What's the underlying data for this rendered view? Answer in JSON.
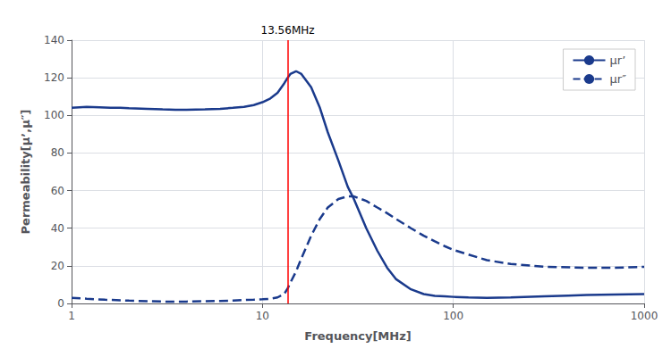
{
  "chart_data": {
    "type": "line",
    "title": "13.56MHz",
    "xlabel": "Frequency[MHz]",
    "ylabel": "Permeability[μ’,μ″]",
    "log": "x",
    "xlim": [
      1,
      1000
    ],
    "xticks": [
      1,
      10,
      100,
      1000
    ],
    "ylim": [
      0,
      140
    ],
    "yticks": [
      0,
      20,
      40,
      60,
      80,
      100,
      120,
      140
    ],
    "grid": true,
    "legend": "upper right",
    "vline": {
      "x": 13.56,
      "color": "#ff0000"
    },
    "series": [
      {
        "name": "μr’",
        "color": "#1a3a8c",
        "line_style": "solid",
        "x": [
          1.0,
          1.1,
          1.2,
          1.4,
          1.6,
          1.8,
          2.0,
          2.5,
          3.0,
          3.5,
          4.0,
          5.0,
          6.0,
          7.0,
          8.0,
          9.0,
          10.0,
          11.0,
          12.0,
          13.0,
          13.56,
          14.0,
          15.0,
          16.0,
          18.0,
          20.0,
          22.0,
          25.0,
          28.0,
          30.0,
          35.0,
          40.0,
          45.0,
          50.0,
          60.0,
          70.0,
          80.0,
          90.0,
          100.0,
          120.0,
          150.0,
          200.0,
          300.0,
          400.0,
          500.0,
          700.0,
          1000.0
        ],
        "values": [
          104.0,
          104.3,
          104.5,
          104.3,
          104.1,
          104.0,
          103.8,
          103.5,
          103.2,
          103.0,
          103.0,
          103.2,
          103.5,
          104.0,
          104.5,
          105.5,
          107.0,
          109.0,
          112.0,
          117.0,
          120.0,
          122.0,
          123.5,
          122.0,
          115.0,
          104.0,
          91.0,
          76.0,
          62.0,
          56.0,
          40.0,
          28.0,
          19.0,
          13.0,
          7.5,
          5.0,
          4.0,
          3.8,
          3.5,
          3.2,
          3.0,
          3.2,
          3.8,
          4.2,
          4.5,
          4.8,
          5.0
        ]
      },
      {
        "name": "μr″",
        "color": "#1a3a8c",
        "line_style": "dashed",
        "x": [
          1.0,
          1.2,
          1.5,
          2.0,
          2.5,
          3.0,
          4.0,
          5.0,
          6.0,
          7.0,
          8.0,
          9.0,
          10.0,
          11.0,
          12.0,
          13.0,
          13.56,
          14.0,
          15.0,
          16.0,
          18.0,
          20.0,
          22.0,
          25.0,
          28.0,
          30.0,
          35.0,
          40.0,
          45.0,
          50.0,
          60.0,
          70.0,
          80.0,
          90.0,
          100.0,
          120.0,
          150.0,
          200.0,
          300.0,
          500.0,
          700.0,
          1000.0
        ],
        "values": [
          3.0,
          2.5,
          2.0,
          1.5,
          1.2,
          1.0,
          1.0,
          1.2,
          1.3,
          1.5,
          1.8,
          2.0,
          2.2,
          2.5,
          3.2,
          5.0,
          8.0,
          11.0,
          17.0,
          24.0,
          36.0,
          45.0,
          51.0,
          55.5,
          57.0,
          57.0,
          54.5,
          51.0,
          48.0,
          45.0,
          40.0,
          36.0,
          33.0,
          30.5,
          28.5,
          26.0,
          23.0,
          21.0,
          19.5,
          19.0,
          19.0,
          19.5
        ]
      }
    ]
  }
}
